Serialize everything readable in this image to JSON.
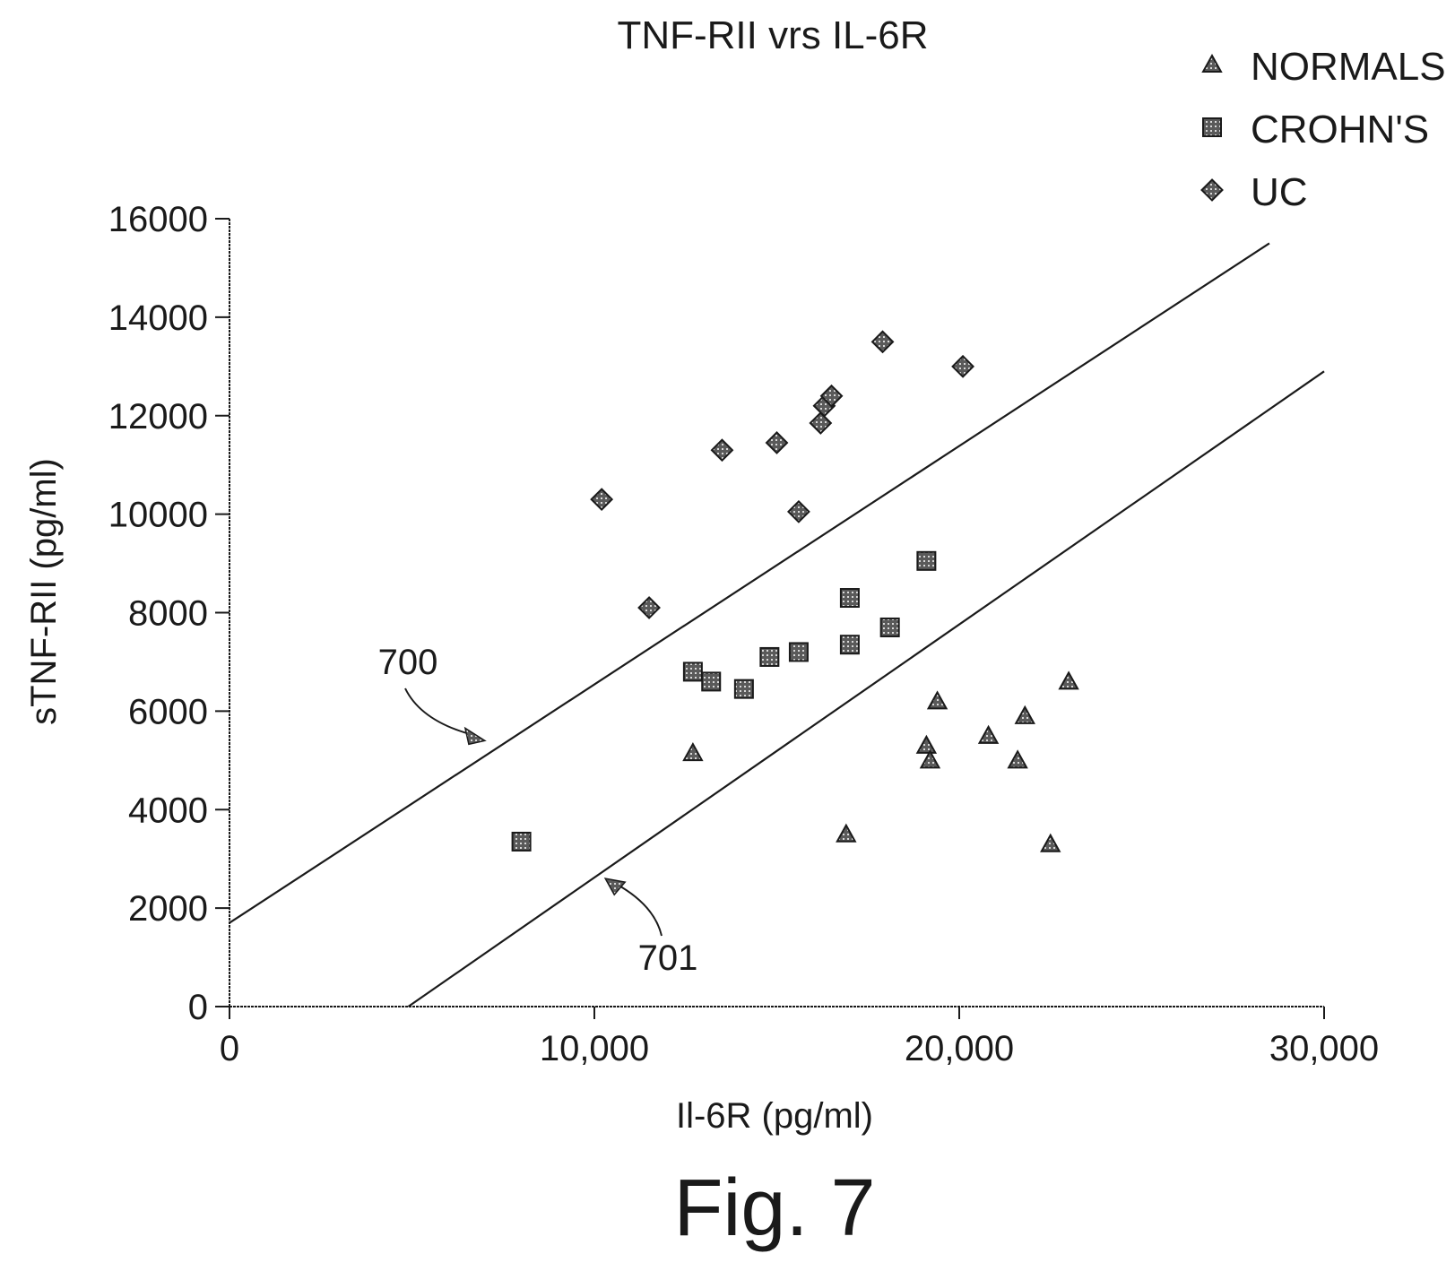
{
  "chart_data": {
    "type": "scatter",
    "title": "TNF-RII vrs IL-6R",
    "xlabel": "Il-6R (pg/ml)",
    "ylabel": "sTNF-RII (pg/ml)",
    "xlim": [
      0,
      30000
    ],
    "ylim": [
      0,
      16000
    ],
    "x_ticks": [
      0,
      10000,
      20000,
      30000
    ],
    "x_tick_labels": [
      "0",
      "10,000",
      "20,000",
      "30,000"
    ],
    "y_ticks": [
      0,
      2000,
      4000,
      6000,
      8000,
      10000,
      12000,
      14000,
      16000
    ],
    "y_tick_labels": [
      "0",
      "2000",
      "4000",
      "6000",
      "8000",
      "10000",
      "12000",
      "14000",
      "16000"
    ],
    "grid": false,
    "legend_position": "top-right",
    "series": [
      {
        "name": "NORMALS",
        "marker": "triangle",
        "points": [
          [
            12700,
            5150
          ],
          [
            16900,
            3500
          ],
          [
            19100,
            5300
          ],
          [
            19200,
            5000
          ],
          [
            19400,
            6200
          ],
          [
            20800,
            5500
          ],
          [
            21600,
            5000
          ],
          [
            21800,
            5900
          ],
          [
            22500,
            3300
          ],
          [
            23000,
            6600
          ]
        ]
      },
      {
        "name": "CROHN'S",
        "marker": "square",
        "points": [
          [
            8000,
            3350
          ],
          [
            12700,
            6800
          ],
          [
            13200,
            6600
          ],
          [
            14100,
            6450
          ],
          [
            14800,
            7100
          ],
          [
            15600,
            7200
          ],
          [
            17000,
            8300
          ],
          [
            17000,
            7350
          ],
          [
            18100,
            7700
          ],
          [
            19100,
            9050
          ]
        ]
      },
      {
        "name": "UC",
        "marker": "diamond",
        "points": [
          [
            10200,
            10300
          ],
          [
            11500,
            8100
          ],
          [
            13500,
            11300
          ],
          [
            15000,
            11450
          ],
          [
            15600,
            10050
          ],
          [
            16200,
            11850
          ],
          [
            16300,
            12200
          ],
          [
            16500,
            12400
          ],
          [
            17900,
            13500
          ],
          [
            20100,
            13000
          ]
        ]
      }
    ],
    "lines": [
      {
        "label": "700",
        "x": [
          0,
          28500
        ],
        "y": [
          1700,
          15500
        ]
      },
      {
        "label": "701",
        "x": [
          4900,
          30000
        ],
        "y": [
          0,
          12900
        ]
      }
    ],
    "callouts": [
      {
        "text": "700",
        "points_to": [
          7000,
          5400
        ]
      },
      {
        "text": "701",
        "points_to": [
          10300,
          2600
        ]
      }
    ],
    "caption": "Fig. 7",
    "colors": {
      "ink": "#1a1a1a",
      "marker_fill": "#555555"
    }
  }
}
